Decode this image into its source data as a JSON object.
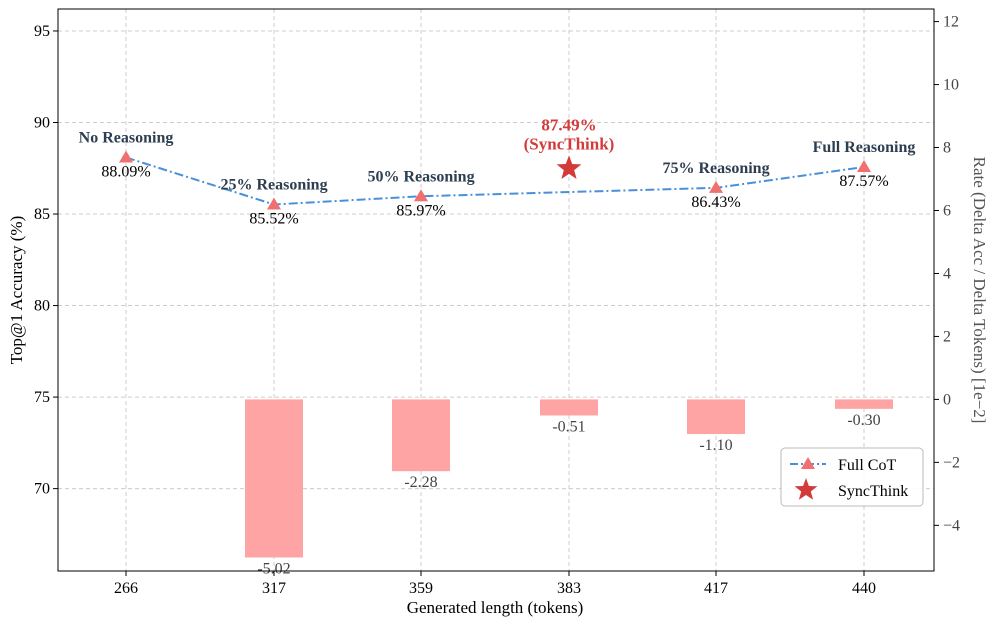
{
  "chart_data": {
    "type": "line+bar",
    "xlabel": "Generated length (tokens)",
    "ylabel": "Top@1 Accuracy (%)",
    "ylabel_right": "Rate (Delta Acc / Delta Tokens) [1e−2]",
    "ylim": [
      65.5,
      96.2
    ],
    "ylim_right": [
      -5.45,
      12.4
    ],
    "yticks": [
      70,
      75,
      80,
      85,
      90,
      95
    ],
    "yticks_right": [
      -4,
      -2,
      0,
      2,
      4,
      6,
      8,
      10,
      12
    ],
    "yticks_right_labels": [
      "−4",
      "−2",
      "0",
      "2",
      "4",
      "6",
      "8",
      "10",
      "12"
    ],
    "categories": [
      "266",
      "317",
      "359",
      "383",
      "417",
      "440"
    ],
    "line_points": [
      {
        "cat_index": 0,
        "value": 88.09,
        "label": "88.09%",
        "name": "No Reasoning"
      },
      {
        "cat_index": 1,
        "value": 85.52,
        "label": "85.52%",
        "name": "25% Reasoning"
      },
      {
        "cat_index": 2,
        "value": 85.97,
        "label": "85.97%",
        "name": "50% Reasoning"
      },
      {
        "cat_index": 4,
        "value": 86.43,
        "label": "86.43%",
        "name": "75% Reasoning"
      },
      {
        "cat_index": 5,
        "value": 87.57,
        "label": "87.57%",
        "name": "Full Reasoning"
      }
    ],
    "synthink": {
      "cat_index": 3,
      "value": 87.49,
      "label_line1": "87.49%",
      "label_line2": "(SyncThink)"
    },
    "bars": [
      {
        "cat_index": 1,
        "value": -5.02,
        "label": "-5.02"
      },
      {
        "cat_index": 2,
        "value": -2.28,
        "label": "-2.28"
      },
      {
        "cat_index": 3,
        "value": -0.51,
        "label": "-0.51"
      },
      {
        "cat_index": 4,
        "value": -1.1,
        "label": "-1.10"
      },
      {
        "cat_index": 5,
        "value": -0.3,
        "label": "-0.30"
      }
    ],
    "legend": [
      "Full CoT",
      "SyncThink"
    ],
    "legend_position": "lower-right",
    "colors": {
      "line": "#4a90d9",
      "marker": "#f07070",
      "star": "#d33b3b",
      "bar": "#ffa4a4",
      "grid": "#cccccc"
    }
  }
}
